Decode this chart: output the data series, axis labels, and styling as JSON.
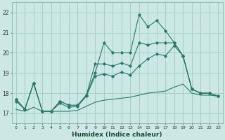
{
  "xlabel": "Humidex (Indice chaleur)",
  "background_color": "#cce8e4",
  "grid_color": "#9dccc4",
  "line_color": "#2a7a6a",
  "xlim": [
    -0.5,
    23.5
  ],
  "ylim": [
    16.5,
    22.5
  ],
  "yticks": [
    17,
    18,
    19,
    20,
    21,
    22
  ],
  "xticks": [
    0,
    1,
    2,
    3,
    4,
    5,
    6,
    7,
    8,
    9,
    10,
    11,
    12,
    13,
    14,
    15,
    16,
    17,
    18,
    19,
    20,
    21,
    22,
    23
  ],
  "line1_x": [
    0,
    1,
    2,
    3,
    4,
    5,
    6,
    7,
    8,
    9,
    10,
    11,
    12,
    13,
    14,
    15,
    16,
    17,
    18,
    19,
    20,
    21,
    22,
    23
  ],
  "line1_y": [
    17.7,
    17.2,
    18.5,
    17.1,
    17.1,
    17.6,
    17.4,
    17.4,
    17.9,
    19.0,
    20.5,
    20.0,
    20.0,
    20.0,
    21.9,
    21.3,
    21.6,
    21.1,
    20.5,
    19.85,
    18.2,
    18.0,
    18.0,
    17.85
  ],
  "line2_x": [
    0,
    1,
    2,
    3,
    4,
    5,
    6,
    7,
    8,
    9,
    10,
    11,
    12,
    13,
    14,
    15,
    16,
    17,
    18,
    19,
    20,
    21,
    22,
    23
  ],
  "line2_y": [
    17.7,
    17.2,
    18.5,
    17.1,
    17.1,
    17.6,
    17.4,
    17.4,
    17.9,
    19.45,
    19.45,
    19.35,
    19.5,
    19.35,
    20.5,
    20.4,
    20.5,
    20.5,
    20.5,
    19.85,
    18.2,
    18.0,
    18.0,
    17.85
  ],
  "line3_x": [
    0,
    1,
    2,
    3,
    4,
    5,
    6,
    7,
    8,
    9,
    10,
    11,
    12,
    13,
    14,
    15,
    16,
    17,
    18,
    19,
    20,
    21,
    22,
    23
  ],
  "line3_y": [
    17.6,
    17.2,
    18.5,
    17.1,
    17.1,
    17.5,
    17.3,
    17.35,
    17.85,
    18.85,
    18.95,
    18.85,
    19.05,
    18.9,
    19.35,
    19.7,
    19.95,
    19.85,
    20.35,
    19.85,
    18.2,
    18.0,
    18.0,
    17.85
  ],
  "line4_x": [
    0,
    1,
    2,
    3,
    4,
    5,
    6,
    7,
    8,
    9,
    10,
    11,
    12,
    13,
    14,
    15,
    16,
    17,
    18,
    19,
    20,
    21,
    22,
    23
  ],
  "line4_y": [
    17.2,
    17.1,
    17.3,
    17.1,
    17.1,
    17.1,
    17.1,
    17.15,
    17.35,
    17.55,
    17.65,
    17.7,
    17.75,
    17.8,
    17.9,
    18.0,
    18.05,
    18.1,
    18.3,
    18.45,
    18.0,
    17.9,
    17.9,
    17.85
  ]
}
